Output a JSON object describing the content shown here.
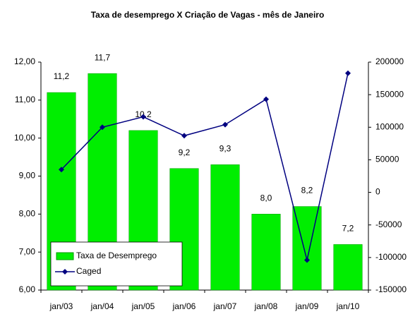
{
  "chart_data": {
    "type": "bar_line",
    "title": "Taxa de desemprego X Criação de Vagas - mês de Janeiro",
    "categories": [
      "jan/03",
      "jan/04",
      "jan/05",
      "jan/06",
      "jan/07",
      "jan/08",
      "jan/09",
      "jan/10"
    ],
    "series": [
      {
        "name": "Taxa de Desemprego",
        "color": "#00ee00",
        "type": "bar",
        "values": [
          11.2,
          11.7,
          10.2,
          9.2,
          9.3,
          8.0,
          8.2,
          7.2
        ],
        "value_labels": [
          "11,2",
          "11,7",
          "10,2",
          "9,2",
          "9,3",
          "8,0",
          "8,2",
          "7,2"
        ]
      },
      {
        "name": "Caged",
        "color": "#000080",
        "type": "line",
        "axis": "y2",
        "values": [
          35000,
          100000,
          116000,
          87000,
          104000,
          143000,
          -104000,
          183000
        ]
      }
    ],
    "ylim": [
      6,
      12
    ],
    "yticks": [
      {
        "value": 6,
        "label": "6,00"
      },
      {
        "value": 7,
        "label": "7,00"
      },
      {
        "value": 8,
        "label": "8,00"
      },
      {
        "value": 9,
        "label": "9,00"
      },
      {
        "value": 10,
        "label": "10,00"
      },
      {
        "value": 11,
        "label": "11,00"
      },
      {
        "value": 12,
        "label": "12,00"
      }
    ],
    "y2lim": [
      -150000,
      200000
    ],
    "y2ticks": [
      -150000,
      -100000,
      -50000,
      0,
      50000,
      100000,
      150000,
      200000
    ],
    "legend": "lower left"
  }
}
